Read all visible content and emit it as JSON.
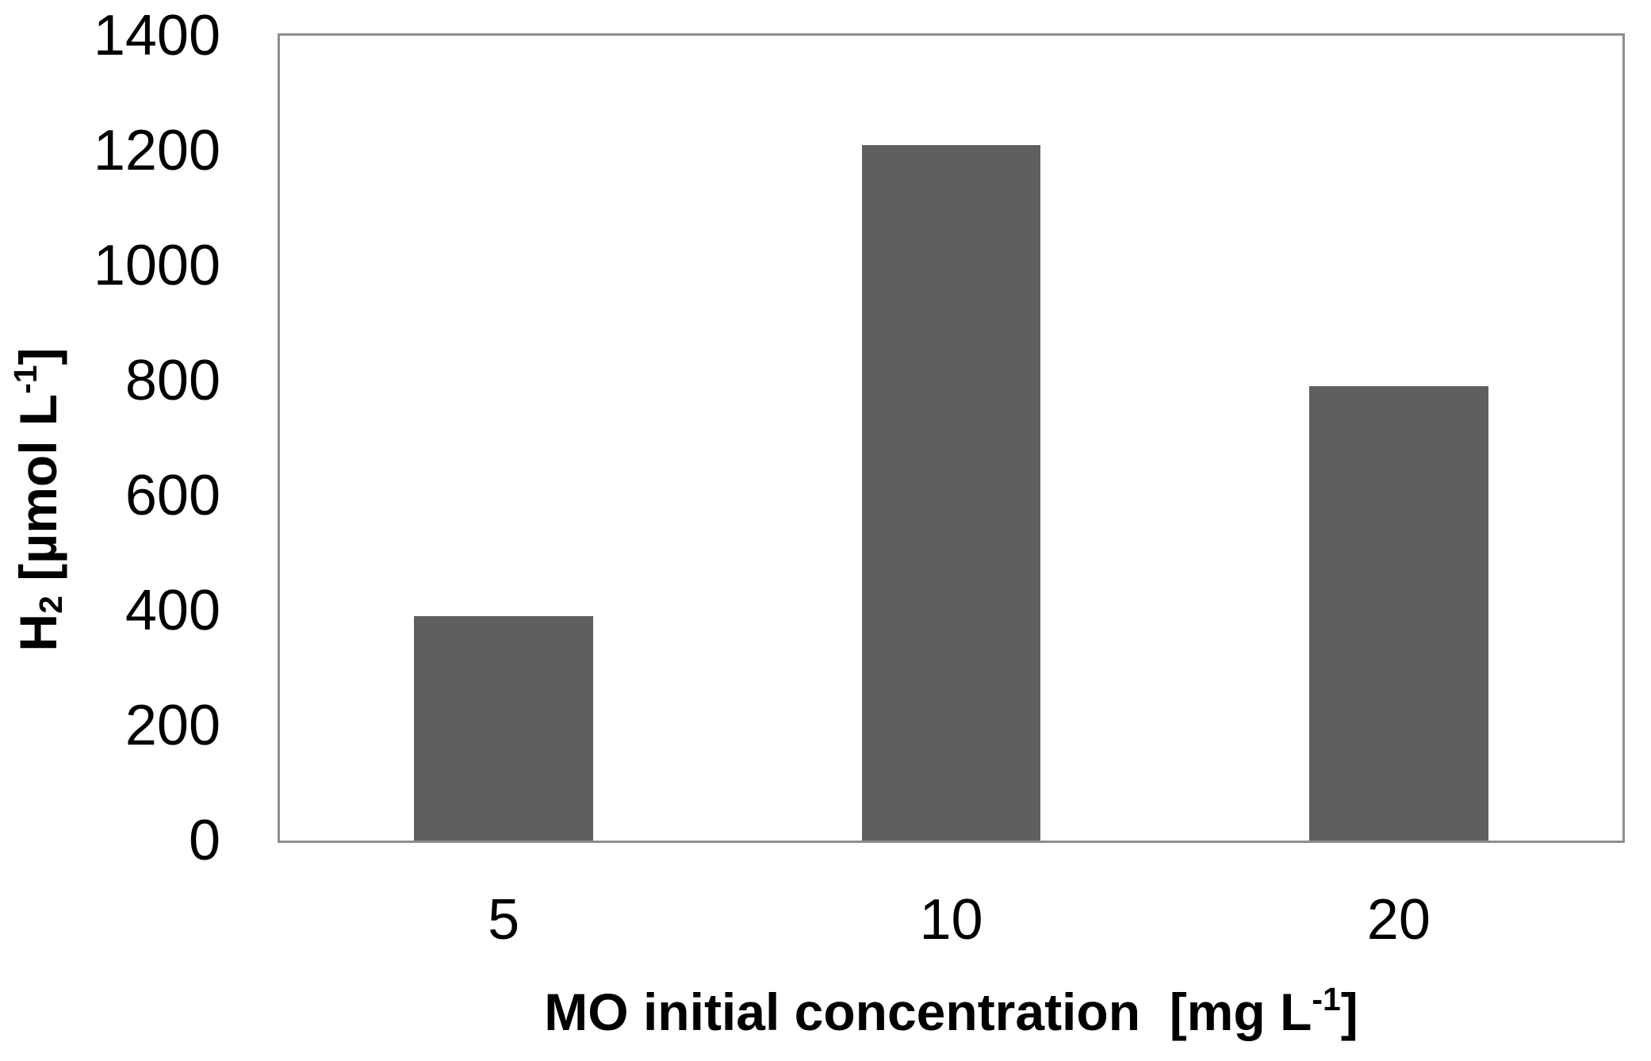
{
  "chart_data": {
    "type": "bar",
    "categories": [
      "5",
      "10",
      "20"
    ],
    "values": [
      390,
      1210,
      790
    ],
    "title": "",
    "xlabel": "MO initial concentration [mg L⁻¹]",
    "ylabel": "H₂ [µmol L⁻¹]",
    "xlim_categories": true,
    "ylim": [
      0,
      1400
    ],
    "yticks": [
      0,
      200,
      400,
      600,
      800,
      1000,
      1200,
      1400
    ],
    "grid": false,
    "legend": false,
    "bar_color": "#5f5f5f",
    "plot_border_color": "#8e8e8e",
    "text_color": "#000000",
    "background": "#ffffff"
  },
  "ylabel_parts": {
    "base1": "H",
    "sub": "2",
    "base2": " [µmol L",
    "sup": "-1",
    "close": "]"
  },
  "xlabel_parts": {
    "base1": "MO initial concentration  [mg L",
    "sup": "-1",
    "close": "]"
  }
}
